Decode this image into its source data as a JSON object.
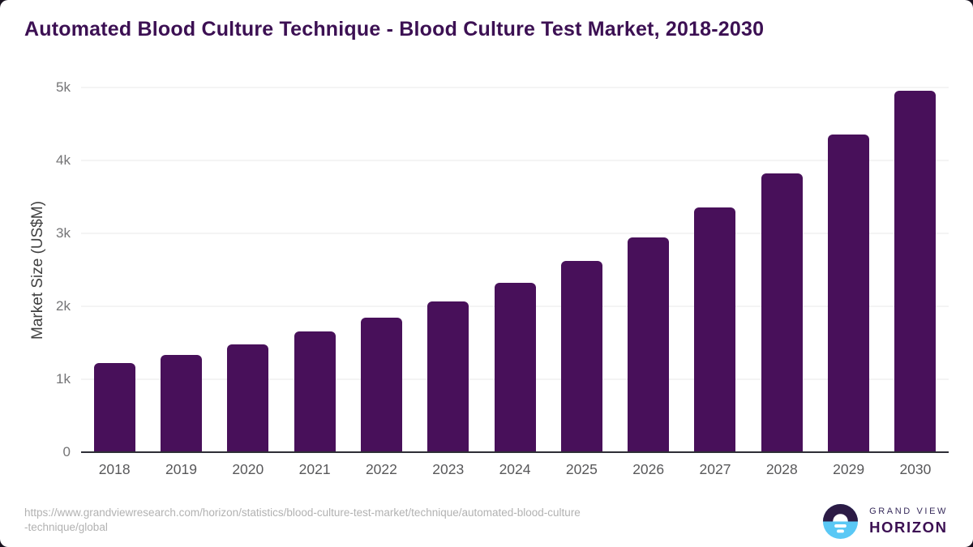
{
  "chart_data": {
    "type": "bar",
    "title": "Automated Blood Culture Technique - Blood Culture Test Market, 2018-2030",
    "xlabel": "",
    "ylabel": "Market Size (US$M)",
    "categories": [
      "2018",
      "2019",
      "2020",
      "2021",
      "2022",
      "2023",
      "2024",
      "2025",
      "2026",
      "2027",
      "2028",
      "2029",
      "2030"
    ],
    "values": [
      1220,
      1330,
      1475,
      1655,
      1845,
      2070,
      2325,
      2625,
      2950,
      3360,
      3825,
      4360,
      4955
    ],
    "ylim": [
      0,
      5000
    ],
    "ytick_labels": [
      "0",
      "1k",
      "2k",
      "3k",
      "4k",
      "5k"
    ],
    "grid": "horizontal",
    "legend": "none",
    "bar_color": "#48105a"
  },
  "footer": {
    "source_url": "https://www.grandviewresearch.com/horizon/statistics/blood-culture-test-market/technique/automated-blood-culture-technique/global",
    "logo": {
      "line1": "GRAND VIEW",
      "line2": "HORIZON",
      "icon": "sunrise-horizon-circle-icon"
    }
  },
  "colors": {
    "title_text": "#3c1053",
    "bar": "#48105a",
    "gridline": "#e8e8ea",
    "axis_line": "#2e2e36",
    "tick_text": "#747476",
    "x_tick_text": "#58585a",
    "url_text": "#b2b2b2",
    "logo_dark": "#2c1b45",
    "logo_blue": "#5ac8f5"
  }
}
